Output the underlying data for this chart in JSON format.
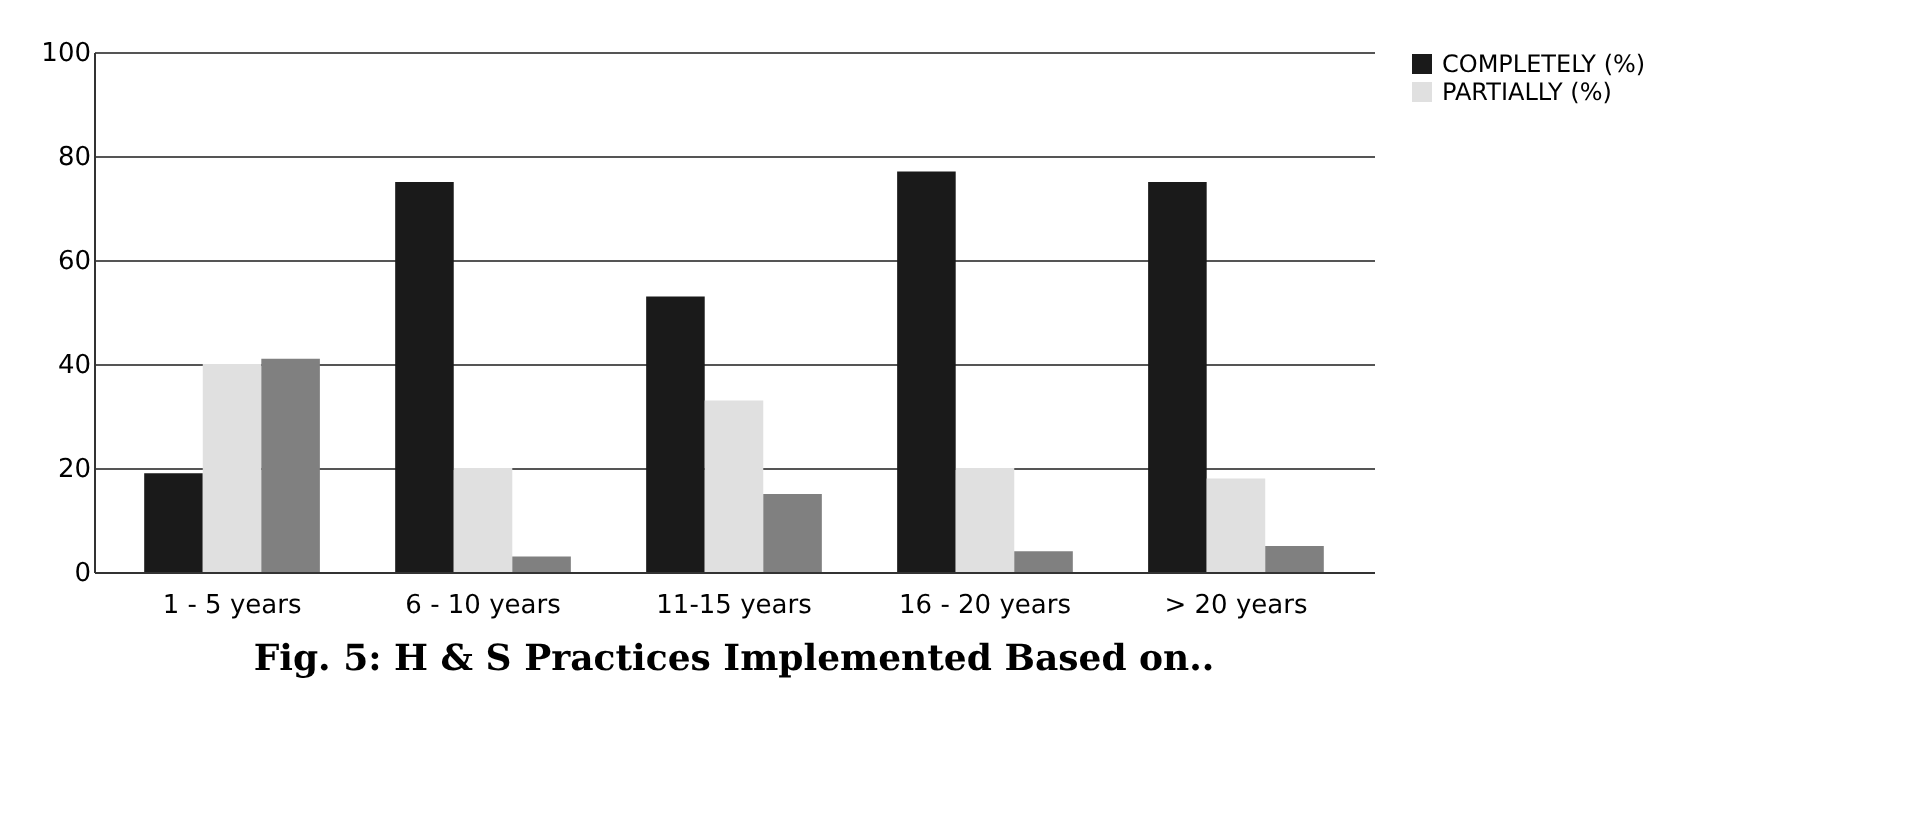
{
  "chart_data": {
    "type": "bar",
    "title": "Fig. 5: H & S Practices Implemented Based on..",
    "categories": [
      "1 - 5 years",
      "6 - 10 years",
      "11-15 years",
      "16 - 20 years",
      "> 20 years"
    ],
    "series": [
      {
        "name": "COMPLETELY (%)",
        "color": "#1a1a1a",
        "values": [
          19,
          75,
          53,
          77,
          75
        ]
      },
      {
        "name": "PARTIALLY (%)",
        "color": "#e0e0e0",
        "values": [
          40,
          20,
          33,
          20,
          18
        ]
      },
      {
        "color": "#808080",
        "values": [
          41,
          3,
          15,
          4,
          5
        ]
      }
    ],
    "ylim": [
      0,
      100
    ],
    "yticks": [
      0,
      20,
      40,
      60,
      80,
      100
    ],
    "grid": "y",
    "legend": "right"
  }
}
